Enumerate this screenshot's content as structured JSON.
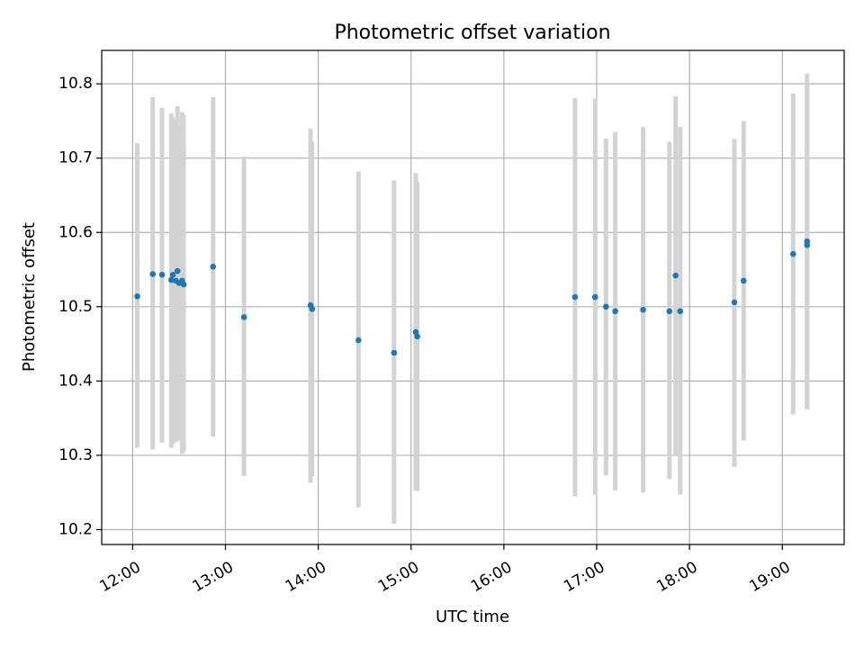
{
  "chart_data": {
    "type": "scatter",
    "title": "Photometric offset variation",
    "xlabel": "UTC time",
    "ylabel": "Photometric offset",
    "xlim": [
      "11:40",
      "19:40"
    ],
    "ylim": [
      10.18,
      10.845
    ],
    "x_ticks": [
      "12:00",
      "13:00",
      "14:00",
      "15:00",
      "16:00",
      "17:00",
      "18:00",
      "19:00"
    ],
    "y_ticks": [
      10.2,
      10.3,
      10.4,
      10.5,
      10.6,
      10.7,
      10.8
    ],
    "grid": true,
    "colors": {
      "point": "#1f77b4",
      "errorbar": "#d3d3d3"
    },
    "points": [
      {
        "x": "12:03",
        "y": 10.514,
        "err_low": 10.31,
        "err_high": 10.72
      },
      {
        "x": "12:13",
        "y": 10.544,
        "err_low": 10.308,
        "err_high": 10.782
      },
      {
        "x": "12:19",
        "y": 10.543,
        "err_low": 10.317,
        "err_high": 10.768
      },
      {
        "x": "12:25",
        "y": 10.536,
        "err_low": 10.31,
        "err_high": 10.76
      },
      {
        "x": "12:26",
        "y": 10.543,
        "err_low": 10.315,
        "err_high": 10.755
      },
      {
        "x": "12:28",
        "y": 10.535,
        "err_low": 10.318,
        "err_high": 10.75
      },
      {
        "x": "12:29",
        "y": 10.548,
        "err_low": 10.322,
        "err_high": 10.77
      },
      {
        "x": "12:30",
        "y": 10.532,
        "err_low": 10.32,
        "err_high": 10.745
      },
      {
        "x": "12:32",
        "y": 10.535,
        "err_low": 10.302,
        "err_high": 10.762
      },
      {
        "x": "12:33",
        "y": 10.53,
        "err_low": 10.305,
        "err_high": 10.758
      },
      {
        "x": "12:52",
        "y": 10.554,
        "err_low": 10.325,
        "err_high": 10.782
      },
      {
        "x": "13:12",
        "y": 10.486,
        "err_low": 10.272,
        "err_high": 10.702
      },
      {
        "x": "13:55",
        "y": 10.502,
        "err_low": 10.263,
        "err_high": 10.74
      },
      {
        "x": "13:56",
        "y": 10.497,
        "err_low": 10.272,
        "err_high": 10.722
      },
      {
        "x": "14:26",
        "y": 10.455,
        "err_low": 10.23,
        "err_high": 10.682
      },
      {
        "x": "14:49",
        "y": 10.438,
        "err_low": 10.208,
        "err_high": 10.67
      },
      {
        "x": "15:03",
        "y": 10.466,
        "err_low": 10.253,
        "err_high": 10.68
      },
      {
        "x": "15:04",
        "y": 10.46,
        "err_low": 10.252,
        "err_high": 10.667
      },
      {
        "x": "16:46",
        "y": 10.513,
        "err_low": 10.245,
        "err_high": 10.781
      },
      {
        "x": "16:59",
        "y": 10.513,
        "err_low": 10.247,
        "err_high": 10.78
      },
      {
        "x": "17:06",
        "y": 10.5,
        "err_low": 10.273,
        "err_high": 10.726
      },
      {
        "x": "17:12",
        "y": 10.494,
        "err_low": 10.253,
        "err_high": 10.735
      },
      {
        "x": "17:30",
        "y": 10.496,
        "err_low": 10.25,
        "err_high": 10.742
      },
      {
        "x": "17:47",
        "y": 10.494,
        "err_low": 10.268,
        "err_high": 10.722
      },
      {
        "x": "17:51",
        "y": 10.542,
        "err_low": 10.3,
        "err_high": 10.783
      },
      {
        "x": "17:54",
        "y": 10.494,
        "err_low": 10.247,
        "err_high": 10.742
      },
      {
        "x": "18:29",
        "y": 10.506,
        "err_low": 10.284,
        "err_high": 10.726
      },
      {
        "x": "18:35",
        "y": 10.535,
        "err_low": 10.32,
        "err_high": 10.75
      },
      {
        "x": "19:07",
        "y": 10.571,
        "err_low": 10.355,
        "err_high": 10.787
      },
      {
        "x": "19:16",
        "y": 10.588,
        "err_low": 10.362,
        "err_high": 10.814
      },
      {
        "x": "19:16",
        "y": 10.583,
        "err_low": 10.362,
        "err_high": 10.8
      }
    ]
  }
}
